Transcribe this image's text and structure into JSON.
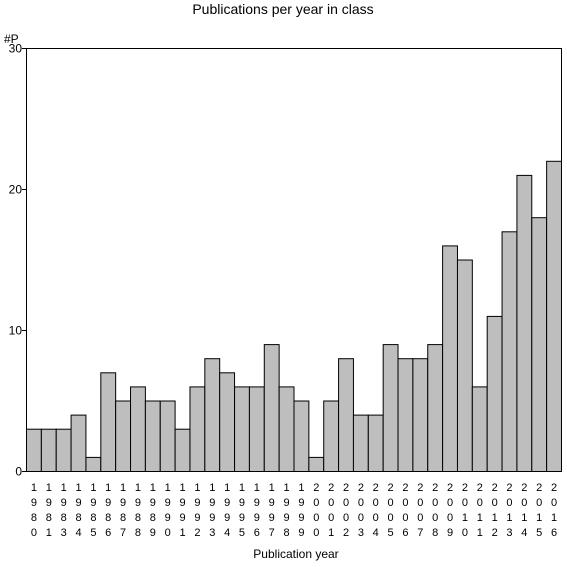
{
  "chart_data": {
    "type": "bar",
    "title": "Publications per year in class",
    "xlabel": "Publication year",
    "ylabel": "#P",
    "ylim": [
      0,
      30
    ],
    "yticks": [
      0,
      10,
      20,
      30
    ],
    "grid": false,
    "bar_color": "#bebebe",
    "categories": [
      "1980",
      "1981",
      "1983",
      "1984",
      "1985",
      "1986",
      "1987",
      "1988",
      "1989",
      "1990",
      "1991",
      "1992",
      "1993",
      "1994",
      "1995",
      "1996",
      "1997",
      "1998",
      "1999",
      "2000",
      "2001",
      "2002",
      "2003",
      "2004",
      "2005",
      "2006",
      "2007",
      "2008",
      "2009",
      "2010",
      "2011",
      "2012",
      "2013",
      "2014",
      "2015",
      "2016"
    ],
    "values": [
      3,
      3,
      3,
      4,
      1,
      7,
      5,
      6,
      5,
      5,
      3,
      6,
      8,
      7,
      6,
      6,
      9,
      6,
      5,
      1,
      5,
      8,
      4,
      4,
      9,
      8,
      8,
      9,
      16,
      15,
      6,
      11,
      17,
      21,
      18,
      22
    ]
  }
}
